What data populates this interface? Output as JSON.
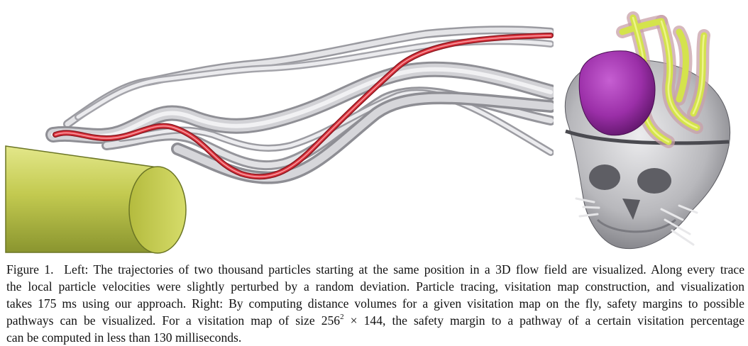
{
  "caption": {
    "label": "Figure 1.",
    "line1_after_label": "Left: The trajectories of two thousand particles starting at the same position in a 3D flow field are visualized. Along every trace",
    "line2": "the local particle velocities were slightly perturbed by a random deviation. Particle tracing, visitation map construction, and visualization",
    "line3": "takes 175 ms using our approach. Right: By computing distance volumes for a given visitation map on the fly, safety margins to possible",
    "line4_before_size": "pathways can be visualized. For a visitation map of size 256",
    "line4_superscript": "2",
    "line4_after_size": " × 144, the safety margin to a pathway of a certain visitation percentage",
    "line5": "can be computed in less than 130 milliseconds."
  },
  "colors": {
    "cylinder": "#c9cf5c",
    "cylinder_dark": "#7d8a2a",
    "trace_gray": "#cfcfd2",
    "trace_red": "#d8303a",
    "tumor_purple": "#9b2fa8",
    "vessel_yellow": "#cfe34a",
    "skull_gray": "#b9b9bc"
  }
}
